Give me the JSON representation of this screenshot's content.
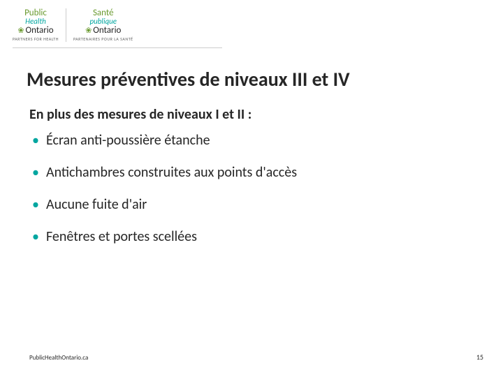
{
  "logo": {
    "en": {
      "line1": "Public",
      "line2": "Health",
      "ontario": "Ontario",
      "tagline": "PARTNERS FOR HEALTH",
      "line1_color": "#6a9a2f",
      "line2_color": "#00a6a0",
      "ontario_color": "#262626",
      "trillium_color": "#6a9a2f"
    },
    "fr": {
      "line1": "Santé",
      "line2": "publique",
      "ontario": "Ontario",
      "tagline": "PARTENAIRES POUR LA SANTÉ",
      "line1_color": "#6a9a2f",
      "line2_color": "#00a6a0",
      "ontario_color": "#262626",
      "trillium_color": "#6a9a2f"
    }
  },
  "title": "Mesures préventives de niveaux III et IV",
  "subtitle": "En plus des mesures de niveaux I et II :",
  "bullets": [
    "Écran anti-poussière étanche",
    "Antichambres construites aux points d'accès",
    "Aucune fuite d'air",
    "Fenêtres et portes scellées"
  ],
  "bullet_color": "#00a6a0",
  "footer_url": "PublicHealthOntario.ca",
  "page_number": "15",
  "title_fontsize": 28,
  "body_fontsize": 20,
  "text_color": "#262626",
  "background_color": "#ffffff"
}
